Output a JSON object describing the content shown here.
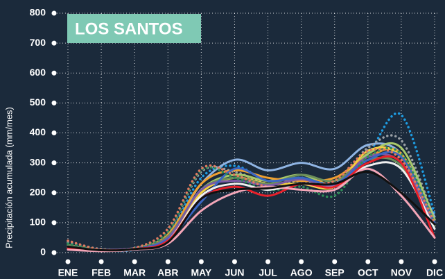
{
  "chart_data": {
    "type": "line",
    "title": "LOS SANTOS",
    "y_label": "Precipitación acumulada (mm/mes)",
    "categories": [
      "ENE",
      "FEB",
      "MAR",
      "ABR",
      "MAY",
      "JUN",
      "JUL",
      "AGO",
      "SEP",
      "OCT",
      "NOV",
      "DIC"
    ],
    "ylim": [
      0,
      800
    ],
    "yticks": [
      0,
      100,
      200,
      300,
      400,
      500,
      600,
      700,
      800
    ],
    "grid": true,
    "series": [
      {
        "color": "#1e9be0",
        "dotted": true,
        "values": [
          30,
          10,
          10,
          60,
          250,
          290,
          240,
          250,
          230,
          330,
          460,
          130
        ]
      },
      {
        "color": "#8fb4e3",
        "dotted": false,
        "values": [
          25,
          10,
          15,
          60,
          230,
          310,
          275,
          300,
          280,
          360,
          330,
          120
        ]
      },
      {
        "color": "#9aa0a6",
        "dotted": true,
        "values": [
          35,
          12,
          15,
          70,
          270,
          270,
          230,
          240,
          230,
          350,
          375,
          110
        ]
      },
      {
        "color": "#a8c96a",
        "dotted": false,
        "values": [
          20,
          10,
          15,
          50,
          210,
          260,
          240,
          260,
          230,
          330,
          350,
          110
        ]
      },
      {
        "color": "#f0a030",
        "dotted": false,
        "values": [
          25,
          10,
          15,
          60,
          230,
          275,
          250,
          240,
          250,
          320,
          330,
          90
        ]
      },
      {
        "color": "#f5d040",
        "dotted": false,
        "values": [
          20,
          8,
          12,
          50,
          200,
          250,
          230,
          230,
          220,
          340,
          320,
          100
        ]
      },
      {
        "color": "#6b8e5a",
        "dotted": false,
        "values": [
          25,
          10,
          15,
          55,
          210,
          250,
          230,
          260,
          240,
          310,
          290,
          90
        ]
      },
      {
        "color": "#7a5aa6",
        "dotted": false,
        "values": [
          20,
          10,
          15,
          50,
          210,
          240,
          225,
          245,
          225,
          320,
          300,
          95
        ]
      },
      {
        "color": "#3a66c4",
        "dotted": false,
        "values": [
          20,
          8,
          12,
          45,
          170,
          280,
          240,
          250,
          230,
          310,
          320,
          100
        ]
      },
      {
        "color": "#2e8b57",
        "dotted": true,
        "values": [
          30,
          10,
          15,
          70,
          275,
          250,
          210,
          220,
          190,
          320,
          330,
          100
        ]
      },
      {
        "color": "#e07a5f",
        "dotted": true,
        "values": [
          40,
          10,
          15,
          80,
          280,
          260,
          220,
          230,
          240,
          340,
          310,
          100
        ]
      },
      {
        "color": "#f0f0f0",
        "dotted": false,
        "values": [
          15,
          8,
          10,
          40,
          190,
          230,
          210,
          230,
          220,
          290,
          280,
          80
        ]
      },
      {
        "color": "#e8202a",
        "dotted": false,
        "values": [
          15,
          8,
          12,
          40,
          180,
          220,
          190,
          230,
          220,
          300,
          300,
          50
        ]
      },
      {
        "color": "#f4a6b8",
        "dotted": false,
        "values": [
          10,
          5,
          10,
          30,
          140,
          200,
          220,
          210,
          210,
          280,
          190,
          50
        ]
      },
      {
        "color": "#111111",
        "dotted": false,
        "values": [
          20,
          8,
          12,
          35,
          180,
          210,
          215,
          230,
          230,
          270,
          200,
          95
        ]
      }
    ]
  }
}
